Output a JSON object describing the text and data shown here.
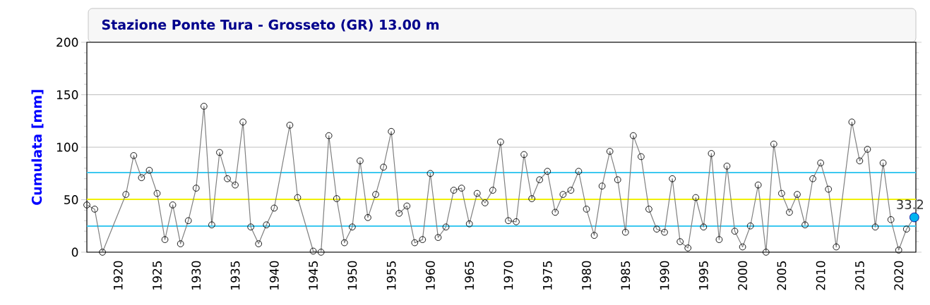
{
  "chart_data": {
    "type": "line",
    "title": "Stazione Ponte Tura - Grosseto (GR) 13.00 m",
    "ylabel": "Cumulata [mm]",
    "xlim": [
      1916,
      2022.2
    ],
    "xticks": [
      1920,
      1925,
      1930,
      1935,
      1940,
      1945,
      1950,
      1955,
      1960,
      1965,
      1970,
      1975,
      1980,
      1985,
      1990,
      1995,
      2000,
      2005,
      2010,
      2015,
      2020
    ],
    "ylim": [
      0,
      200
    ],
    "yticks": [
      0,
      50,
      100,
      150,
      200
    ],
    "grid": "y",
    "marker": "circle",
    "series": [
      {
        "color": "#808080",
        "x": [
          1916,
          1917,
          1918,
          1921,
          1922,
          1923,
          1924,
          1925,
          1926,
          1927,
          1928,
          1929,
          1930,
          1931,
          1932,
          1933,
          1934,
          1935,
          1936,
          1937,
          1938,
          1939,
          1940,
          1942,
          1943,
          1945,
          1946,
          1947,
          1948,
          1949,
          1950,
          1951,
          1952,
          1953,
          1954,
          1955,
          1956,
          1957,
          1958,
          1959,
          1960,
          1961,
          1962,
          1963,
          1964,
          1965,
          1966,
          1967,
          1968,
          1969,
          1970,
          1971,
          1972,
          1973,
          1974,
          1975,
          1976,
          1977,
          1978,
          1979,
          1980,
          1981,
          1982,
          1983,
          1984,
          1985,
          1986,
          1987,
          1988,
          1989,
          1990,
          1991,
          1992,
          1993,
          1994,
          1995,
          1996,
          1997,
          1998,
          1999,
          2000,
          2001,
          2002,
          2003,
          2004,
          2005,
          2006,
          2007,
          2008,
          2009,
          2010,
          2011,
          2012,
          2014,
          2015,
          2016,
          2017,
          2018,
          2019,
          2020,
          2021,
          2022
        ],
        "values": [
          45,
          41,
          0,
          55,
          92,
          71,
          78,
          56,
          12,
          45,
          8,
          30,
          61,
          139,
          26,
          95,
          70,
          64,
          124,
          24,
          8,
          26,
          42,
          121,
          52,
          1,
          0,
          111,
          51,
          9,
          24,
          87,
          33,
          55,
          81,
          115,
          37,
          44,
          9,
          12,
          75,
          14,
          24,
          59,
          61,
          27,
          56,
          47,
          59,
          105,
          30,
          29,
          93,
          51,
          69,
          77,
          38,
          55,
          59,
          77,
          41,
          16,
          63,
          96,
          69,
          19,
          111,
          91,
          41,
          22,
          19,
          70,
          10,
          4,
          52,
          24,
          94,
          12,
          82,
          20,
          5,
          25,
          64,
          0,
          103,
          56,
          38,
          55,
          26,
          70,
          85,
          60,
          5,
          124,
          87,
          98,
          24,
          85,
          31,
          2,
          22,
          33.2
        ]
      },
      {
        "type": "scatter",
        "color": "#00b4f0",
        "x": [
          2022
        ],
        "values": [
          33.2
        ],
        "value_labels": [
          "33.2"
        ]
      }
    ],
    "ref_lines": [
      {
        "axis": "y",
        "value": 50.3,
        "color": "#f0f000"
      },
      {
        "axis": "y",
        "value": 75.8,
        "color": "#3cc8f0"
      },
      {
        "axis": "y",
        "value": 24.8,
        "color": "#3cc8f0"
      }
    ]
  }
}
